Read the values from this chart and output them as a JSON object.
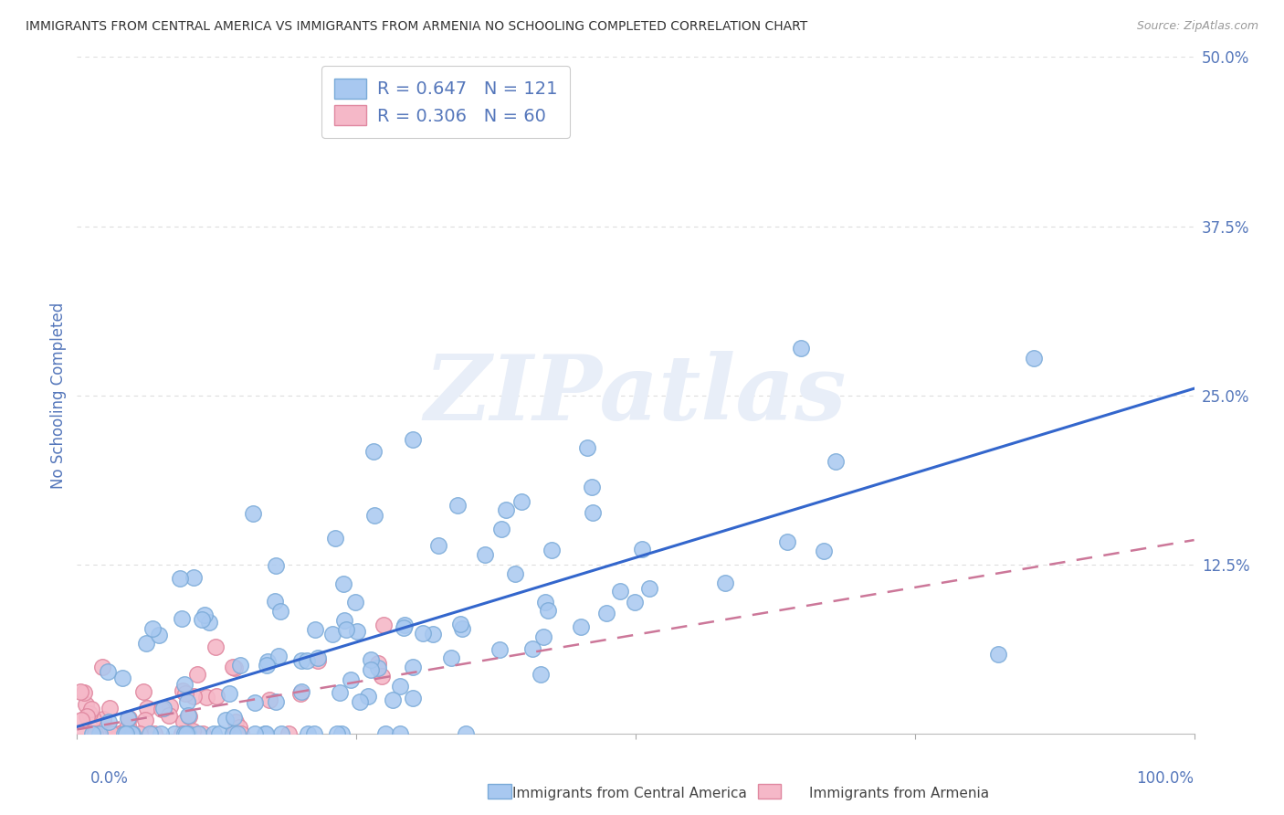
{
  "title": "IMMIGRANTS FROM CENTRAL AMERICA VS IMMIGRANTS FROM ARMENIA NO SCHOOLING COMPLETED CORRELATION CHART",
  "source": "Source: ZipAtlas.com",
  "ylabel": "No Schooling Completed",
  "r_blue": 0.647,
  "n_blue": 121,
  "r_pink": 0.306,
  "n_pink": 60,
  "legend_label_blue": "Immigrants from Central America",
  "legend_label_pink": "Immigrants from Armenia",
  "xlim": [
    0,
    1.0
  ],
  "ylim": [
    0,
    0.5
  ],
  "yticks": [
    0,
    0.125,
    0.25,
    0.375,
    0.5
  ],
  "ytick_labels": [
    "",
    "12.5%",
    "25.0%",
    "37.5%",
    "50.0%"
  ],
  "watermark": "ZIPatlas",
  "background_color": "#ffffff",
  "blue_color": "#a8c8f0",
  "blue_edge": "#7aaad8",
  "pink_color": "#f5b8c8",
  "pink_edge": "#e088a0",
  "blue_line_color": "#3366cc",
  "pink_line_color": "#cc7799",
  "title_color": "#333333",
  "source_color": "#999999",
  "axis_color": "#5577bb",
  "label_color": "#444444",
  "grid_color": "#dddddd"
}
